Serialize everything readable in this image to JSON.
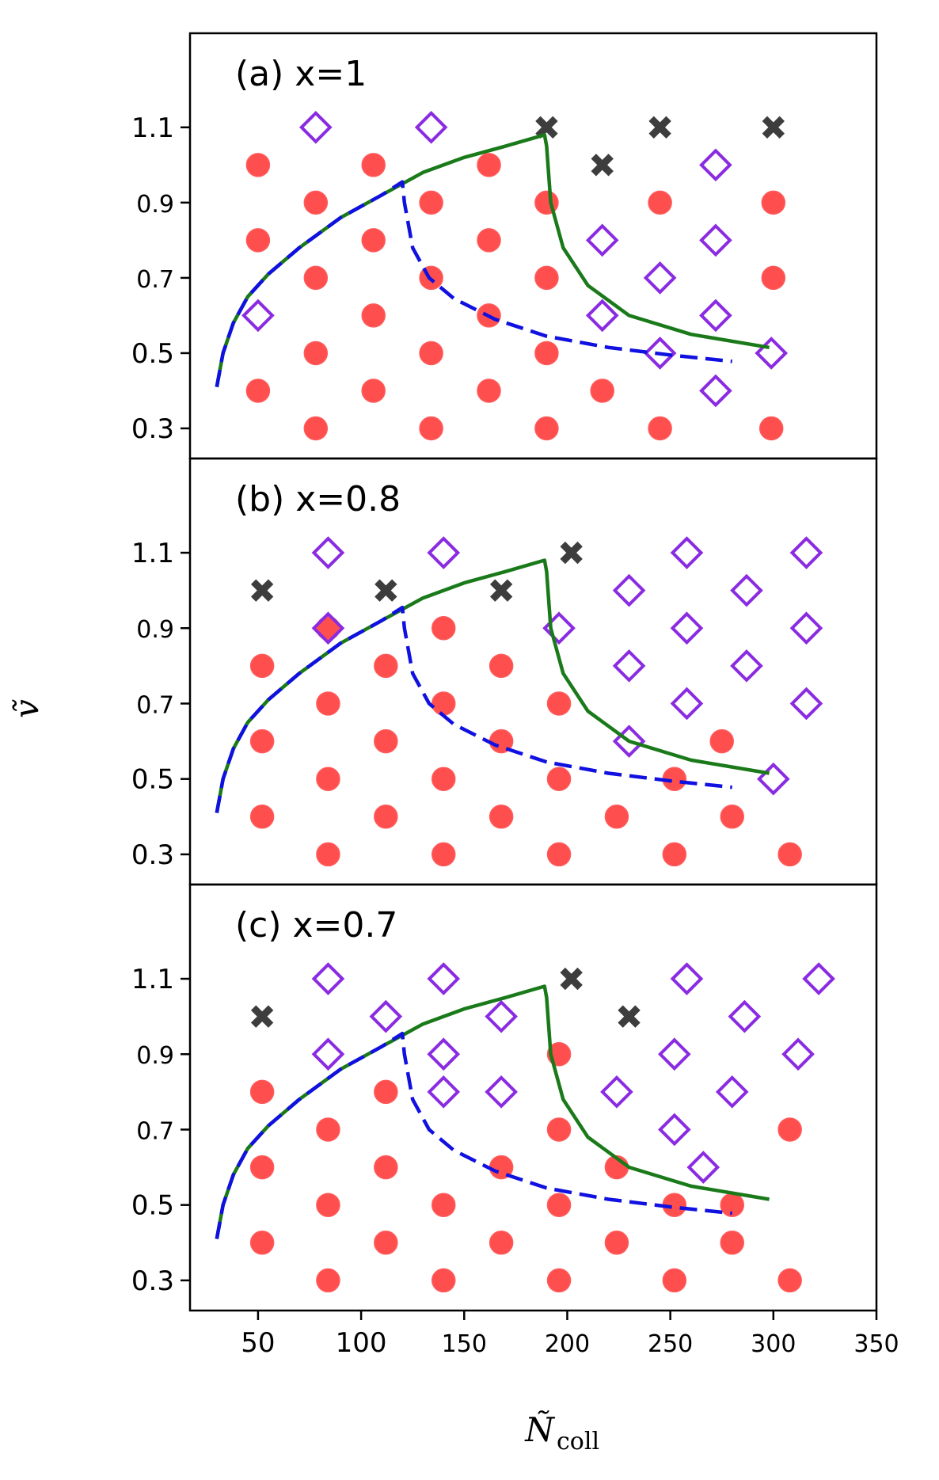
{
  "chart_data": {
    "type": "scatter",
    "xlabel": "Ñ",
    "xlabel_sub": "coll",
    "ylabel": "ṽ",
    "xlim": [
      17,
      350
    ],
    "ylim": [
      0.22,
      1.35
    ],
    "xticks": [
      50,
      100,
      150,
      200,
      250,
      300,
      350
    ],
    "yticks": [
      0.3,
      0.5,
      0.7,
      0.9,
      1.1
    ],
    "colors": {
      "circle": "#ff3b3b",
      "diamond": "#8a2be2",
      "cross": "#333333",
      "solid_curve": "#1a7a1a",
      "dashed_curve": "#1010e0"
    },
    "curves": {
      "solid": [
        [
          30,
          0.41
        ],
        [
          33,
          0.5
        ],
        [
          38,
          0.58
        ],
        [
          45,
          0.65
        ],
        [
          55,
          0.71
        ],
        [
          70,
          0.78
        ],
        [
          90,
          0.86
        ],
        [
          110,
          0.92
        ],
        [
          130,
          0.98
        ],
        [
          150,
          1.02
        ],
        [
          170,
          1.05
        ],
        [
          189,
          1.08
        ],
        [
          190,
          1.05
        ],
        [
          192,
          0.9
        ],
        [
          198,
          0.78
        ],
        [
          210,
          0.68
        ],
        [
          230,
          0.6
        ],
        [
          260,
          0.55
        ],
        [
          298,
          0.515
        ]
      ],
      "dashed": [
        [
          30,
          0.41
        ],
        [
          33,
          0.5
        ],
        [
          38,
          0.58
        ],
        [
          45,
          0.65
        ],
        [
          55,
          0.71
        ],
        [
          70,
          0.78
        ],
        [
          90,
          0.86
        ],
        [
          110,
          0.92
        ],
        [
          120,
          0.955
        ],
        [
          121,
          0.9
        ],
        [
          125,
          0.78
        ],
        [
          133,
          0.7
        ],
        [
          145,
          0.645
        ],
        [
          165,
          0.59
        ],
        [
          190,
          0.545
        ],
        [
          220,
          0.515
        ],
        [
          250,
          0.495
        ],
        [
          280,
          0.478
        ]
      ]
    },
    "panels": [
      {
        "label": "(a) x=1",
        "circles": [
          [
            50,
            1.0
          ],
          [
            106,
            1.0
          ],
          [
            162,
            1.0
          ],
          [
            78,
            0.9
          ],
          [
            134,
            0.9
          ],
          [
            190,
            0.9
          ],
          [
            245,
            0.9
          ],
          [
            300,
            0.9
          ],
          [
            50,
            0.8
          ],
          [
            106,
            0.8
          ],
          [
            162,
            0.8
          ],
          [
            78,
            0.7
          ],
          [
            134,
            0.7
          ],
          [
            190,
            0.7
          ],
          [
            300,
            0.7
          ],
          [
            106,
            0.6
          ],
          [
            162,
            0.6
          ],
          [
            78,
            0.5
          ],
          [
            134,
            0.5
          ],
          [
            190,
            0.5
          ],
          [
            50,
            0.4
          ],
          [
            106,
            0.4
          ],
          [
            162,
            0.4
          ],
          [
            217,
            0.4
          ],
          [
            78,
            0.3
          ],
          [
            134,
            0.3
          ],
          [
            190,
            0.3
          ],
          [
            245,
            0.3
          ],
          [
            299,
            0.3
          ]
        ],
        "diamonds": [
          [
            78,
            1.1
          ],
          [
            134,
            1.1
          ],
          [
            272,
            1.0
          ],
          [
            217,
            0.8
          ],
          [
            272,
            0.8
          ],
          [
            245,
            0.7
          ],
          [
            50,
            0.6
          ],
          [
            217,
            0.6
          ],
          [
            272,
            0.6
          ],
          [
            245,
            0.5
          ],
          [
            299,
            0.5
          ],
          [
            272,
            0.4
          ]
        ],
        "crosses": [
          [
            190,
            1.1
          ],
          [
            245,
            1.1
          ],
          [
            300,
            1.1
          ],
          [
            217,
            1.0
          ]
        ]
      },
      {
        "label": "(b) x=0.8",
        "circles": [
          [
            84,
            0.9
          ],
          [
            140,
            0.9
          ],
          [
            52,
            0.8
          ],
          [
            112,
            0.8
          ],
          [
            168,
            0.8
          ],
          [
            84,
            0.7
          ],
          [
            140,
            0.7
          ],
          [
            196,
            0.7
          ],
          [
            52,
            0.6
          ],
          [
            112,
            0.6
          ],
          [
            168,
            0.6
          ],
          [
            275,
            0.6
          ],
          [
            84,
            0.5
          ],
          [
            140,
            0.5
          ],
          [
            196,
            0.5
          ],
          [
            252,
            0.5
          ],
          [
            52,
            0.4
          ],
          [
            112,
            0.4
          ],
          [
            168,
            0.4
          ],
          [
            224,
            0.4
          ],
          [
            280,
            0.4
          ],
          [
            84,
            0.3
          ],
          [
            140,
            0.3
          ],
          [
            196,
            0.3
          ],
          [
            252,
            0.3
          ],
          [
            308,
            0.3
          ]
        ],
        "diamonds": [
          [
            84,
            1.1
          ],
          [
            140,
            1.1
          ],
          [
            258,
            1.1
          ],
          [
            316,
            1.1
          ],
          [
            230,
            1.0
          ],
          [
            287,
            1.0
          ],
          [
            84,
            0.9
          ],
          [
            196,
            0.9
          ],
          [
            258,
            0.9
          ],
          [
            316,
            0.9
          ],
          [
            230,
            0.8
          ],
          [
            287,
            0.8
          ],
          [
            258,
            0.7
          ],
          [
            316,
            0.7
          ],
          [
            230,
            0.6
          ],
          [
            300,
            0.5
          ]
        ],
        "crosses": [
          [
            202,
            1.1
          ],
          [
            52,
            1.0
          ],
          [
            112,
            1.0
          ],
          [
            168,
            1.0
          ]
        ]
      },
      {
        "label": "(c) x=0.7",
        "circles": [
          [
            196,
            0.9
          ],
          [
            52,
            0.8
          ],
          [
            112,
            0.8
          ],
          [
            84,
            0.7
          ],
          [
            196,
            0.7
          ],
          [
            308,
            0.7
          ],
          [
            52,
            0.6
          ],
          [
            112,
            0.6
          ],
          [
            168,
            0.6
          ],
          [
            224,
            0.6
          ],
          [
            84,
            0.5
          ],
          [
            140,
            0.5
          ],
          [
            196,
            0.5
          ],
          [
            252,
            0.5
          ],
          [
            280,
            0.5
          ],
          [
            52,
            0.4
          ],
          [
            112,
            0.4
          ],
          [
            168,
            0.4
          ],
          [
            224,
            0.4
          ],
          [
            280,
            0.4
          ],
          [
            84,
            0.3
          ],
          [
            140,
            0.3
          ],
          [
            196,
            0.3
          ],
          [
            252,
            0.3
          ],
          [
            308,
            0.3
          ]
        ],
        "diamonds": [
          [
            84,
            1.1
          ],
          [
            140,
            1.1
          ],
          [
            258,
            1.1
          ],
          [
            322,
            1.1
          ],
          [
            112,
            1.0
          ],
          [
            168,
            1.0
          ],
          [
            286,
            1.0
          ],
          [
            84,
            0.9
          ],
          [
            140,
            0.9
          ],
          [
            252,
            0.9
          ],
          [
            312,
            0.9
          ],
          [
            140,
            0.8
          ],
          [
            168,
            0.8
          ],
          [
            224,
            0.8
          ],
          [
            280,
            0.8
          ],
          [
            252,
            0.7
          ],
          [
            266,
            0.6
          ]
        ],
        "crosses": [
          [
            202,
            1.1
          ],
          [
            52,
            1.0
          ],
          [
            230,
            1.0
          ]
        ]
      }
    ]
  }
}
